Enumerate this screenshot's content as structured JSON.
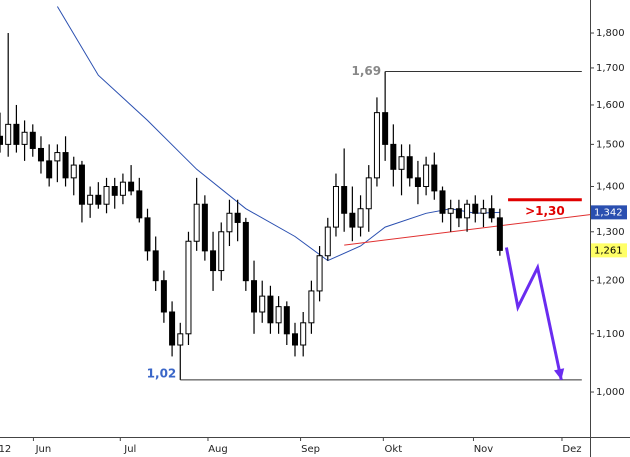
{
  "chart_data": {
    "type": "candlestick",
    "log": true,
    "ylim": [
      0.929,
      1.9
    ],
    "yticks": [
      {
        "value": 1.0,
        "label": "1,000"
      },
      {
        "value": 1.1,
        "label": "1,100"
      },
      {
        "value": 1.2,
        "label": "1,200"
      },
      {
        "value": 1.3,
        "label": "1,300"
      },
      {
        "value": 1.4,
        "label": "1,400"
      },
      {
        "value": 1.5,
        "label": "1,500"
      },
      {
        "value": 1.6,
        "label": "1,600"
      },
      {
        "value": 1.7,
        "label": "1,700"
      },
      {
        "value": 1.8,
        "label": "1,800"
      }
    ],
    "xlim": [
      0,
      72
    ],
    "xticks": [
      {
        "value": 0.6,
        "label": "12"
      },
      {
        "value": 5.3,
        "label": "Jun"
      },
      {
        "value": 15.9,
        "label": "Jul"
      },
      {
        "value": 26.6,
        "label": "Aug"
      },
      {
        "value": 37.9,
        "label": "Sep"
      },
      {
        "value": 48,
        "label": "Okt"
      },
      {
        "value": 59,
        "label": "Nov"
      },
      {
        "value": 69.8,
        "label": "Dez"
      }
    ],
    "up_color": "#ffffff",
    "down_color": "#000000",
    "x": [
      0,
      1,
      2,
      3,
      4,
      5,
      6,
      7,
      8,
      9,
      10,
      11,
      12,
      13,
      14,
      15,
      16,
      17,
      18,
      19,
      20,
      21,
      22,
      23,
      24,
      25,
      26,
      27,
      28,
      29,
      30,
      31,
      32,
      33,
      34,
      35,
      36,
      37,
      38,
      39,
      40,
      41,
      42,
      43,
      44,
      45,
      46,
      47,
      48,
      49,
      50,
      51,
      52,
      53,
      54,
      55,
      56,
      57,
      58,
      59,
      60,
      61
    ],
    "open": [
      1.52,
      1.5,
      1.55,
      1.5,
      1.53,
      1.49,
      1.46,
      1.46,
      1.48,
      1.42,
      1.45,
      1.36,
      1.38,
      1.36,
      1.4,
      1.38,
      1.41,
      1.39,
      1.33,
      1.26,
      1.2,
      1.14,
      1.08,
      1.1,
      1.28,
      1.36,
      1.26,
      1.22,
      1.3,
      1.34,
      1.32,
      1.2,
      1.14,
      1.17,
      1.12,
      1.15,
      1.1,
      1.08,
      1.12,
      1.18,
      1.25,
      1.31,
      1.4,
      1.34,
      1.31,
      1.35,
      1.42,
      1.58,
      1.5,
      1.44,
      1.47,
      1.42,
      1.4,
      1.45,
      1.39,
      1.34,
      1.35,
      1.33,
      1.36,
      1.34,
      1.35,
      1.33
    ],
    "high": [
      1.58,
      1.8,
      1.6,
      1.56,
      1.55,
      1.52,
      1.5,
      1.5,
      1.52,
      1.47,
      1.46,
      1.4,
      1.41,
      1.42,
      1.42,
      1.43,
      1.45,
      1.42,
      1.35,
      1.29,
      1.22,
      1.16,
      1.12,
      1.3,
      1.42,
      1.38,
      1.3,
      1.32,
      1.37,
      1.37,
      1.33,
      1.24,
      1.2,
      1.19,
      1.17,
      1.16,
      1.12,
      1.14,
      1.2,
      1.27,
      1.33,
      1.43,
      1.49,
      1.4,
      1.38,
      1.45,
      1.62,
      1.69,
      1.55,
      1.5,
      1.5,
      1.46,
      1.47,
      1.48,
      1.4,
      1.37,
      1.37,
      1.37,
      1.38,
      1.37,
      1.38,
      1.35
    ],
    "low": [
      1.48,
      1.47,
      1.48,
      1.46,
      1.47,
      1.43,
      1.4,
      1.41,
      1.4,
      1.38,
      1.32,
      1.33,
      1.35,
      1.34,
      1.35,
      1.36,
      1.38,
      1.32,
      1.24,
      1.18,
      1.12,
      1.06,
      1.02,
      1.08,
      1.26,
      1.24,
      1.18,
      1.2,
      1.27,
      1.28,
      1.18,
      1.1,
      1.12,
      1.1,
      1.1,
      1.08,
      1.06,
      1.06,
      1.1,
      1.16,
      1.24,
      1.29,
      1.3,
      1.28,
      1.29,
      1.3,
      1.4,
      1.46,
      1.4,
      1.38,
      1.4,
      1.36,
      1.38,
      1.37,
      1.32,
      1.3,
      1.31,
      1.3,
      1.32,
      1.31,
      1.32,
      1.25
    ],
    "close": [
      1.5,
      1.55,
      1.5,
      1.53,
      1.49,
      1.46,
      1.42,
      1.48,
      1.42,
      1.45,
      1.36,
      1.38,
      1.36,
      1.4,
      1.38,
      1.41,
      1.39,
      1.33,
      1.26,
      1.2,
      1.14,
      1.08,
      1.1,
      1.28,
      1.36,
      1.26,
      1.22,
      1.3,
      1.34,
      1.32,
      1.2,
      1.14,
      1.17,
      1.12,
      1.15,
      1.1,
      1.08,
      1.12,
      1.18,
      1.25,
      1.31,
      1.4,
      1.34,
      1.31,
      1.35,
      1.42,
      1.58,
      1.5,
      1.44,
      1.47,
      1.42,
      1.4,
      1.45,
      1.39,
      1.34,
      1.35,
      1.33,
      1.36,
      1.34,
      1.35,
      1.33,
      1.261
    ],
    "moving_average": {
      "color": "#2a4fb0",
      "x": [
        7,
        12,
        18,
        24,
        30,
        36,
        40,
        44,
        47,
        52,
        55,
        58,
        61
      ],
      "values": [
        1.88,
        1.68,
        1.56,
        1.44,
        1.35,
        1.29,
        1.24,
        1.27,
        1.31,
        1.34,
        1.35,
        1.34,
        1.342
      ]
    },
    "price_labels": [
      {
        "value": 1.342,
        "label": "1,342",
        "color": "#2a4fb0",
        "text_color": "#ffffff"
      },
      {
        "value": 1.261,
        "label": "1,261",
        "color": "#ffff66",
        "text_color": "#000000"
      }
    ],
    "levels": [
      {
        "value": 1.69,
        "label": "1,69",
        "x": [
          47,
          71
        ],
        "color": "#333333",
        "text_color": "#888888"
      },
      {
        "value": 1.02,
        "label": "1,02",
        "x": [
          22,
          71
        ],
        "color": "#333333",
        "text_color": "#3a66c8"
      }
    ],
    "target": {
      "value": 1.37,
      "label": ">1,30",
      "x": [
        62,
        71
      ],
      "color": "#e00000"
    },
    "trendline": {
      "x": [
        42,
        72
      ],
      "values": [
        1.272,
        1.337
      ],
      "color": "#e03030"
    },
    "arrow": {
      "x": [
        61.8,
        63.2,
        65.6,
        68.5
      ],
      "values": [
        1.267,
        1.149,
        1.226,
        1.02
      ],
      "color": "#6a2cf0"
    }
  }
}
